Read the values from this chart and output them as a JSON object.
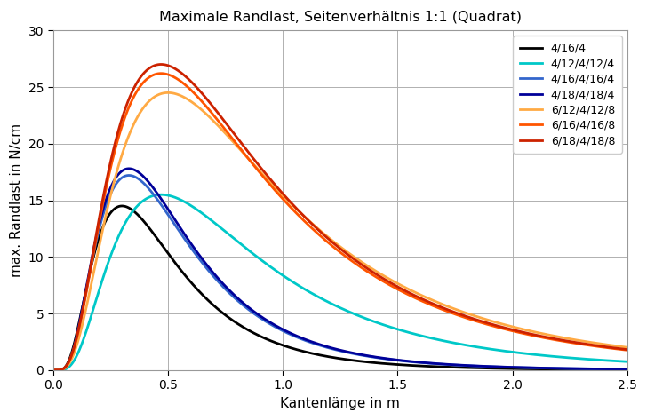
{
  "title": "Maximale Randlast, Seitenverhältnis 1:1 (Quadrat)",
  "xlabel": "Kantenlänge in m",
  "ylabel": "max. Randlast in N/cm",
  "xlim": [
    0.0,
    2.5
  ],
  "ylim": [
    0,
    30
  ],
  "xticks": [
    0.0,
    0.5,
    1.0,
    1.5,
    2.0,
    2.5
  ],
  "yticks": [
    0,
    5,
    10,
    15,
    20,
    25,
    30
  ],
  "series": [
    {
      "label": "4/16/4",
      "color": "#000000",
      "peak": 14.5,
      "x_peak": 0.3,
      "sigma": 0.62
    },
    {
      "label": "4/12/4/12/4",
      "color": "#00C8C8",
      "peak": 15.5,
      "x_peak": 0.47,
      "sigma": 0.68
    },
    {
      "label": "4/16/4/16/4",
      "color": "#3366CC",
      "peak": 17.2,
      "x_peak": 0.33,
      "sigma": 0.62
    },
    {
      "label": "4/18/4/18/4",
      "color": "#000099",
      "peak": 17.8,
      "x_peak": 0.33,
      "sigma": 0.62
    },
    {
      "label": "6/12/4/12/8",
      "color": "#FFAA44",
      "peak": 24.5,
      "x_peak": 0.5,
      "sigma": 0.72
    },
    {
      "label": "6/16/4/16/8",
      "color": "#FF5500",
      "peak": 26.2,
      "x_peak": 0.47,
      "sigma": 0.72
    },
    {
      "label": "6/18/4/18/8",
      "color": "#CC2200",
      "peak": 27.0,
      "x_peak": 0.47,
      "sigma": 0.72
    }
  ],
  "linewidth": 2.0,
  "background_color": "#ffffff",
  "grid_color": "#b0b0b0"
}
